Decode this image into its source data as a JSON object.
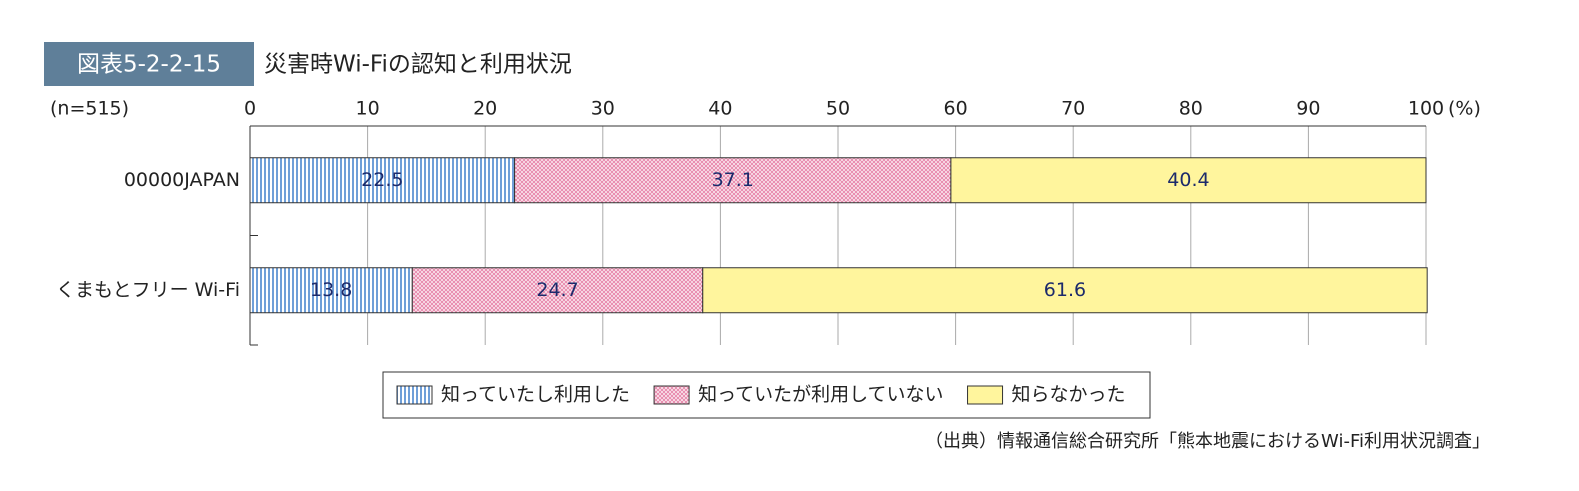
{
  "chart_data": {
    "type": "stacked-barh",
    "figure_label": "図表5-2-2-15",
    "title": "災害時Wi-Fiの認知と利用状況",
    "sample_note": "(n=515)",
    "unit_label": "(%)",
    "categories": [
      "00000JAPAN",
      "くまもとフリー Wi-Fi"
    ],
    "series": [
      {
        "name": "知っていたし利用した",
        "color": "#6f9fd8",
        "values": [
          22.5,
          13.8
        ]
      },
      {
        "name": "知っていたが利用していない",
        "color": "#e98fb0",
        "values": [
          37.1,
          24.7
        ]
      },
      {
        "name": "知らなかった",
        "color": "#fff59d",
        "values": [
          40.4,
          61.6
        ]
      }
    ],
    "xlim": [
      0,
      100
    ],
    "xticks": [
      0,
      10,
      20,
      30,
      40,
      50,
      60,
      70,
      80,
      90,
      100
    ],
    "grid": true,
    "source": "（出典）情報通信総合研究所「熊本地震におけるWi-Fi利用状況調査」"
  }
}
